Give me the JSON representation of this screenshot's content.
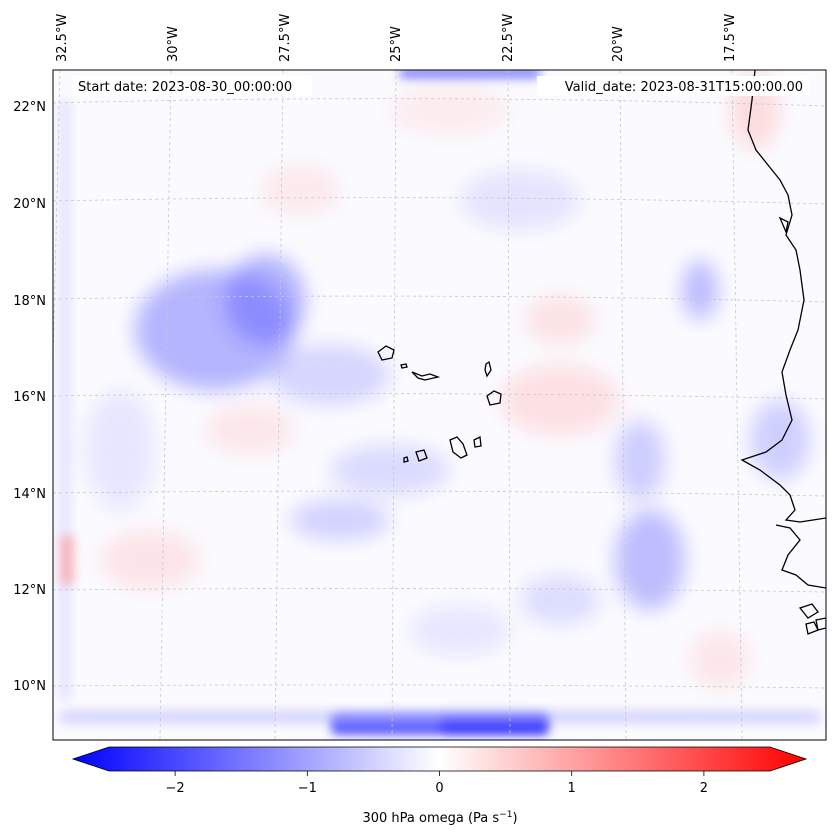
{
  "map": {
    "start_date_text": "Start date: 2023-08-30_00:00:00",
    "valid_date_text": "Valid_date: 2023-08-31T15:00:00.00",
    "lon_ticks": [
      "32.5°W",
      "30°W",
      "27.5°W",
      "25°W",
      "22.5°W",
      "20°W",
      "17.5°W"
    ],
    "lat_ticks": [
      "22°N",
      "20°N",
      "18°N",
      "16°N",
      "14°N",
      "12°N",
      "10°N"
    ],
    "colors": {
      "negative": "#0000ff",
      "neutral": "#ffffff",
      "positive": "#ff0000",
      "coastline": "#000000",
      "grid": "#bbbbbb"
    }
  },
  "colorbar": {
    "label_prefix": "300 hPa omega (Pa s",
    "label_exp": "−1",
    "label_suffix": ")",
    "range": [
      -2.75,
      2.75
    ],
    "ticks": [
      {
        "value": -2,
        "label": "−2"
      },
      {
        "value": -1,
        "label": "−1"
      },
      {
        "value": 0,
        "label": "0"
      },
      {
        "value": 1,
        "label": "1"
      },
      {
        "value": 2,
        "label": "2"
      }
    ]
  }
}
